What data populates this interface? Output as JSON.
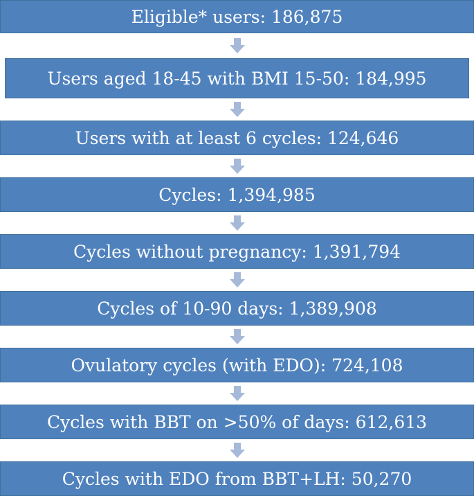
{
  "colors": {
    "box_fill": "#4f81bd",
    "box_border": "#41719c",
    "arrow_fill": "#a6b9d9",
    "text": "#ffffff"
  },
  "steps": [
    {
      "label": "Eligible* users: 186,875"
    },
    {
      "label": "Users aged 18-45 with BMI 15-50: 184,995"
    },
    {
      "label": "Users with at least 6 cycles: 124,646"
    },
    {
      "label": "Cycles: 1,394,985"
    },
    {
      "label": "Cycles without pregnancy: 1,391,794"
    },
    {
      "label": "Cycles of 10-90 days: 1,389,908"
    },
    {
      "label": "Ovulatory cycles (with EDO): 724,108"
    },
    {
      "label": "Cycles with BBT on >50% of days: 612,613"
    },
    {
      "label": "Cycles with EDO from BBT+LH: 50,270"
    }
  ]
}
